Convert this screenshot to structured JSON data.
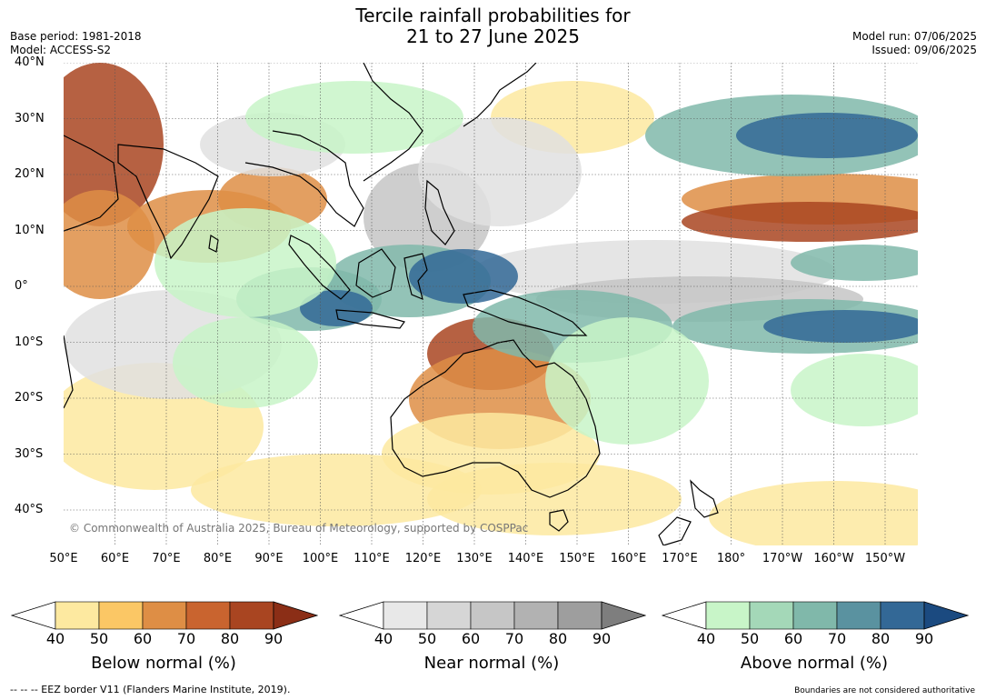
{
  "title": {
    "line1": "Tercile rainfall probabilities for",
    "line2": "21 to 27 June 2025"
  },
  "meta_left": {
    "base_period": "Base period: 1981-2018",
    "model": "Model: ACCESS-S2"
  },
  "meta_right": {
    "model_run": "Model run: 07/06/2025",
    "issued": "Issued: 09/06/2025"
  },
  "lat_labels": [
    "40°N",
    "30°N",
    "20°N",
    "10°N",
    "0°",
    "10°S",
    "20°S",
    "30°S",
    "40°S"
  ],
  "lon_labels": [
    "50°E",
    "60°E",
    "70°E",
    "80°E",
    "90°E",
    "100°E",
    "110°E",
    "120°E",
    "130°E",
    "140°E",
    "150°E",
    "160°E",
    "170°E",
    "180°",
    "170°W",
    "160°W",
    "150°W"
  ],
  "copyright": "© Commonwealth of Australia 2025, Bureau of Meteorology, supported by COSPPac",
  "colorbars": [
    {
      "label": "Below normal (%)",
      "ticks": [
        "40",
        "50",
        "60",
        "70",
        "80",
        "90"
      ],
      "colors": [
        "#fde9a0",
        "#fbc765",
        "#de8e45",
        "#c9642f",
        "#a94521",
        "#8b2e16"
      ]
    },
    {
      "label": "Near normal (%)",
      "ticks": [
        "40",
        "50",
        "60",
        "70",
        "80",
        "90"
      ],
      "colors": [
        "#e8e8e8",
        "#d6d6d6",
        "#c6c6c6",
        "#b2b2b2",
        "#9e9e9e",
        "#7e7e7e"
      ]
    },
    {
      "label": "Above normal (%)",
      "ticks": [
        "40",
        "50",
        "60",
        "70",
        "80",
        "90"
      ],
      "colors": [
        "#c8f5c8",
        "#a4d8b8",
        "#80b8aa",
        "#5a92a0",
        "#336896",
        "#1b4a80"
      ]
    }
  ],
  "footer": {
    "eez": "--  --  -- EEZ border V11 (Flanders Marine Institute, 2019).",
    "disclaimer": "Boundaries are not considered authoritative"
  },
  "palette": {
    "below_strong": "#a94521",
    "below_mid": "#de8e45",
    "below_light": "#fde9a0",
    "near_light": "#e0e0e0",
    "near_mid": "#c6c6c6",
    "above_light": "#c8f5c8",
    "above_mid": "#80b8aa",
    "above_strong": "#336896"
  }
}
